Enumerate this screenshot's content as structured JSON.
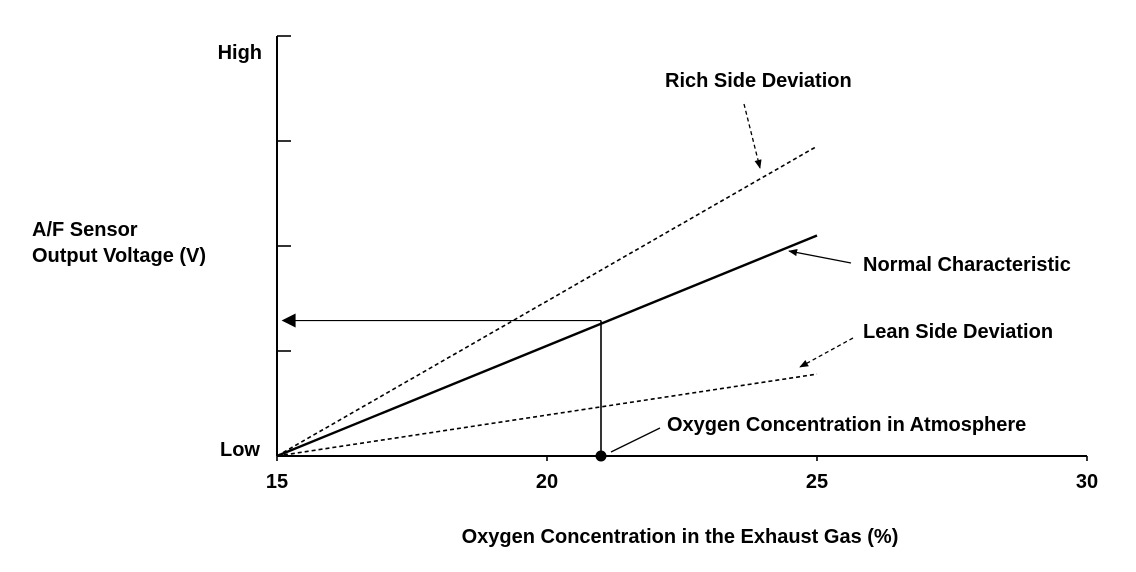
{
  "chart_data": {
    "type": "line",
    "xlabel": "Oxygen Concentration in the Exhaust Gas (%)",
    "ylabel_lines": [
      "A/F Sensor",
      "Output Voltage (V)"
    ],
    "xlim": [
      15,
      30
    ],
    "x_ticks": [
      "15",
      "20",
      "25",
      "30"
    ],
    "ylim": [
      0,
      4
    ],
    "y_tick_values": [
      0,
      1,
      2,
      3,
      4
    ],
    "y_tick_labels": {
      "low": "Low",
      "high": "High"
    },
    "series": [
      {
        "name": "Rich Side Deviation",
        "style": "dashed",
        "x": [
          15,
          25
        ],
        "y": [
          0,
          2.95
        ]
      },
      {
        "name": "Normal Characteristic",
        "style": "solid",
        "x": [
          15,
          25
        ],
        "y": [
          0,
          2.1
        ]
      },
      {
        "name": "Lean Side Deviation",
        "style": "dashed",
        "x": [
          15,
          25
        ],
        "y": [
          0,
          0.78
        ]
      }
    ],
    "marker": {
      "label": "Oxygen Concentration in Atmosphere",
      "x": 21,
      "y": 0
    },
    "readout": {
      "x": 21,
      "y": 1.29,
      "arrow_to": "y-axis"
    },
    "annotations": [
      {
        "text": "Rich Side Deviation",
        "series": "Rich Side Deviation"
      },
      {
        "text": "Normal Characteristic",
        "series": "Normal Characteristic"
      },
      {
        "text": "Lean Side Deviation",
        "series": "Lean Side Deviation"
      },
      {
        "text": "Oxygen Concentration in Atmosphere",
        "series": "marker"
      }
    ],
    "colors": {
      "ink": "#000000",
      "background": "#ffffff"
    }
  }
}
